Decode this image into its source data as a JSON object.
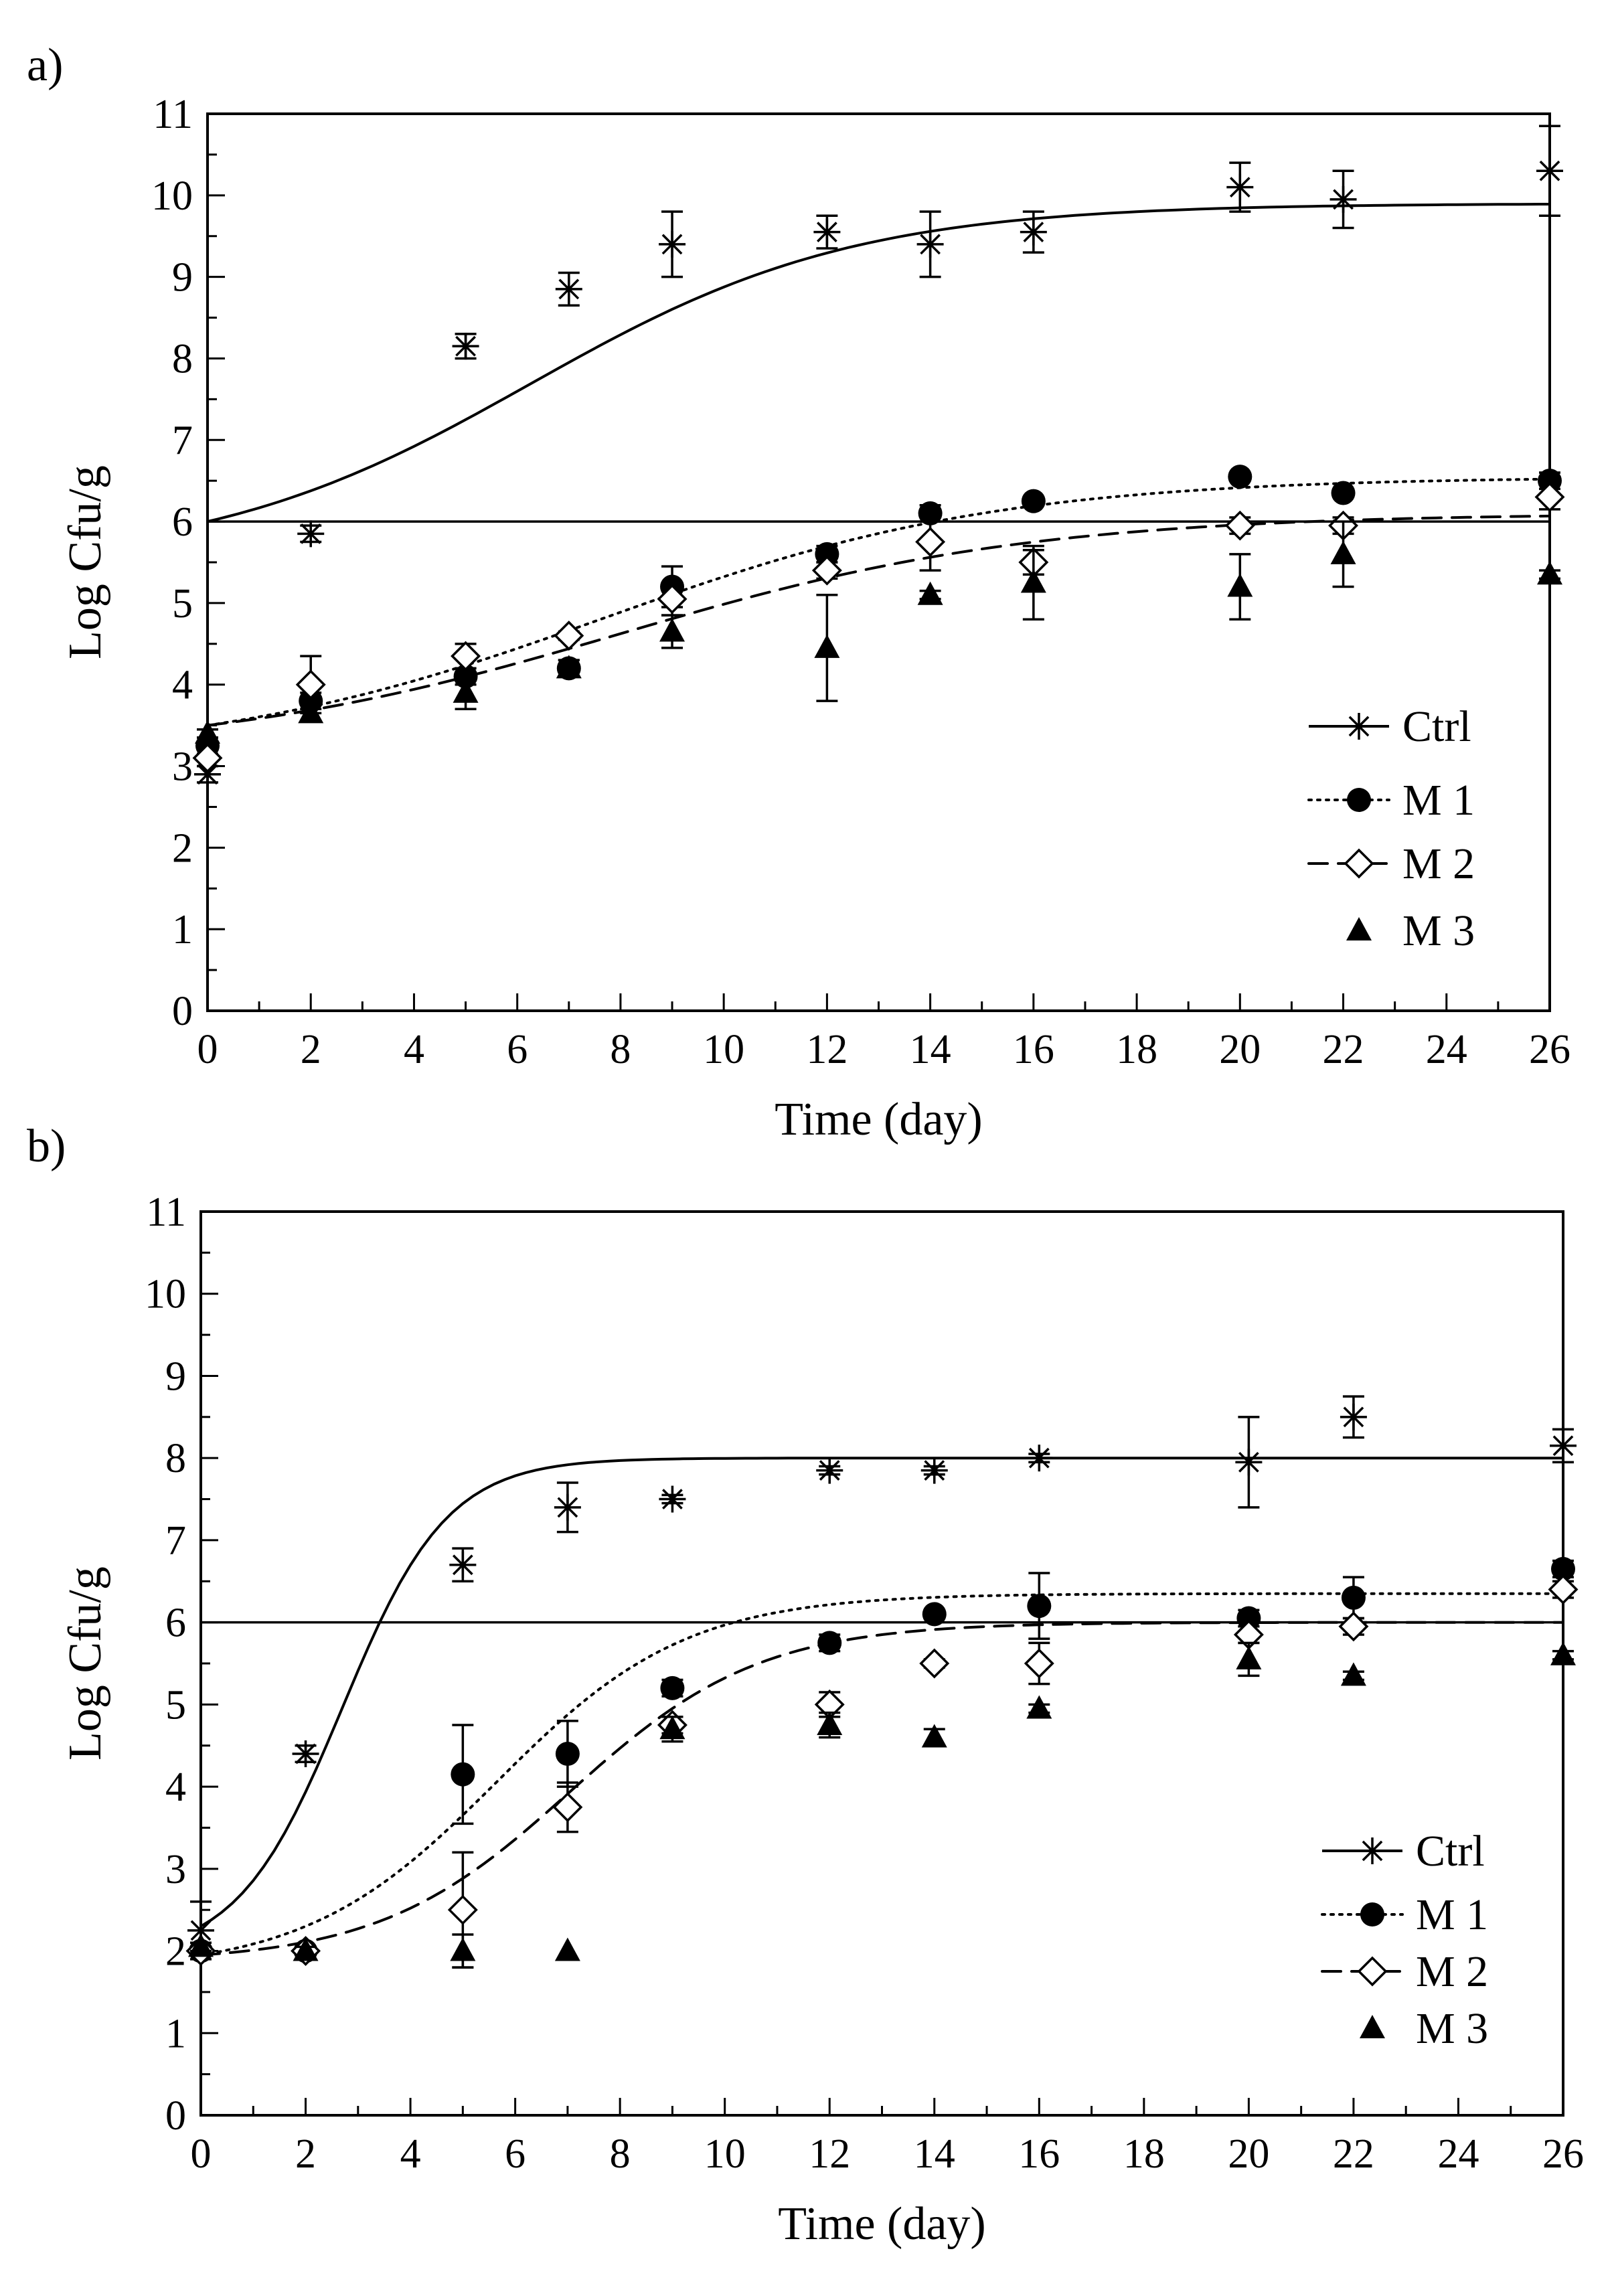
{
  "chart_data": [
    {
      "type": "scatter",
      "panel_label": "a)",
      "xlabel": "Time (day)",
      "ylabel": "Log Cfu/g",
      "xlim": [
        0,
        26
      ],
      "ylim": [
        0,
        11
      ],
      "xticks": [
        0,
        2,
        4,
        6,
        8,
        10,
        12,
        14,
        16,
        18,
        20,
        22,
        24,
        26
      ],
      "yticks": [
        0,
        1,
        2,
        3,
        4,
        5,
        6,
        7,
        8,
        9,
        10,
        11
      ],
      "reference_line_y": 6,
      "legend_position": "bottom-right",
      "series": [
        {
          "name": "Ctrl",
          "marker": "asterisk",
          "line_style": "solid",
          "color": "#000000",
          "points": [
            {
              "x": 0,
              "y": 2.9,
              "err": 0.1
            },
            {
              "x": 2,
              "y": 5.85,
              "err": 0.1
            },
            {
              "x": 5,
              "y": 8.15,
              "err": 0.15
            },
            {
              "x": 7,
              "y": 8.85,
              "err": 0.2
            },
            {
              "x": 9,
              "y": 9.4,
              "err": 0.4
            },
            {
              "x": 12,
              "y": 9.55,
              "err": 0.2
            },
            {
              "x": 14,
              "y": 9.4,
              "err": 0.4
            },
            {
              "x": 16,
              "y": 9.55,
              "err": 0.25
            },
            {
              "x": 20,
              "y": 10.1,
              "err": 0.3
            },
            {
              "x": 22,
              "y": 9.95,
              "err": 0.35
            },
            {
              "x": 26,
              "y": 10.3,
              "err": 0.55
            }
          ],
          "fit": {
            "y0": 6.0,
            "ymax": 9.9,
            "rate": 0.32,
            "lag": 0.0
          }
        },
        {
          "name": "M 1",
          "marker": "filled-circle",
          "line_style": "dotted",
          "color": "#000000",
          "points": [
            {
              "x": 0,
              "y": 3.25,
              "err": 0.1
            },
            {
              "x": 2,
              "y": 3.8,
              "err": 0.1
            },
            {
              "x": 5,
              "y": 4.1,
              "err": 0.1
            },
            {
              "x": 7,
              "y": 4.2,
              "err": 0.1
            },
            {
              "x": 9,
              "y": 5.2,
              "err": 0.25
            },
            {
              "x": 12,
              "y": 5.6,
              "err": 0.1
            },
            {
              "x": 14,
              "y": 6.1,
              "err": 0.1
            },
            {
              "x": 16,
              "y": 6.25,
              "err": 0.05
            },
            {
              "x": 20,
              "y": 6.55,
              "err": 0.05
            },
            {
              "x": 22,
              "y": 6.35,
              "err": 0.05
            },
            {
              "x": 26,
              "y": 6.5,
              "err": 0.1
            }
          ],
          "fit": {
            "y0": 3.5,
            "ymax": 6.55,
            "rate": 0.26,
            "lag": 0.0
          }
        },
        {
          "name": "M 2",
          "marker": "open-diamond",
          "line_style": "dashed",
          "color": "#000000",
          "points": [
            {
              "x": 0,
              "y": 3.1,
              "err": 0.1
            },
            {
              "x": 2,
              "y": 4.0,
              "err": 0.35
            },
            {
              "x": 5,
              "y": 4.35,
              "err": 0.15
            },
            {
              "x": 7,
              "y": 4.6,
              "err": 0.05
            },
            {
              "x": 9,
              "y": 5.05,
              "err": 0.2
            },
            {
              "x": 12,
              "y": 5.4,
              "err": 0.1
            },
            {
              "x": 14,
              "y": 5.75,
              "err": 0.35
            },
            {
              "x": 16,
              "y": 5.5,
              "err": 0.15
            },
            {
              "x": 20,
              "y": 5.95,
              "err": 0.1
            },
            {
              "x": 22,
              "y": 5.95,
              "err": 0.1
            },
            {
              "x": 26,
              "y": 6.3,
              "err": 0.15
            }
          ],
          "fit": {
            "y0": 3.5,
            "ymax": 6.1,
            "rate": 0.25,
            "lag": 0.0
          }
        },
        {
          "name": "M 3",
          "marker": "filled-triangle",
          "line_style": "none",
          "color": "#000000",
          "points": [
            {
              "x": 0,
              "y": 3.4,
              "err": 0.05
            },
            {
              "x": 2,
              "y": 3.65,
              "err": 0.1
            },
            {
              "x": 5,
              "y": 3.9,
              "err": 0.2
            },
            {
              "x": 7,
              "y": 4.2,
              "err": 0.1
            },
            {
              "x": 9,
              "y": 4.65,
              "err": 0.2
            },
            {
              "x": 12,
              "y": 4.45,
              "err": 0.65
            },
            {
              "x": 14,
              "y": 5.1,
              "err": 0.05
            },
            {
              "x": 16,
              "y": 5.25,
              "err": 0.45
            },
            {
              "x": 20,
              "y": 5.2,
              "err": 0.4
            },
            {
              "x": 22,
              "y": 5.6,
              "err": 0.4
            },
            {
              "x": 26,
              "y": 5.35,
              "err": 0.05
            }
          ]
        }
      ]
    },
    {
      "type": "scatter",
      "panel_label": "b)",
      "xlabel": "Time (day)",
      "ylabel": "Log Cfu/g",
      "xlim": [
        0,
        26
      ],
      "ylim": [
        0,
        11
      ],
      "xticks": [
        0,
        2,
        4,
        6,
        8,
        10,
        12,
        14,
        16,
        18,
        20,
        22,
        24,
        26
      ],
      "yticks": [
        0,
        1,
        2,
        3,
        4,
        5,
        6,
        7,
        8,
        9,
        10,
        11
      ],
      "reference_line_y": 6,
      "legend_position": "bottom-right",
      "series": [
        {
          "name": "Ctrl",
          "marker": "asterisk",
          "line_style": "solid",
          "color": "#000000",
          "points": [
            {
              "x": 0,
              "y": 2.25,
              "err": 0.35
            },
            {
              "x": 2,
              "y": 4.4,
              "err": 0.1
            },
            {
              "x": 5,
              "y": 6.7,
              "err": 0.2
            },
            {
              "x": 7,
              "y": 7.4,
              "err": 0.3
            },
            {
              "x": 9,
              "y": 7.5,
              "err": 0.05
            },
            {
              "x": 12,
              "y": 7.85,
              "err": 0.05
            },
            {
              "x": 14,
              "y": 7.85,
              "err": 0.05
            },
            {
              "x": 16,
              "y": 8.0,
              "err": 0.05
            },
            {
              "x": 20,
              "y": 7.95,
              "err": 0.55
            },
            {
              "x": 22,
              "y": 8.5,
              "err": 0.25
            },
            {
              "x": 26,
              "y": 8.15,
              "err": 0.2
            }
          ],
          "fit": {
            "y0": 2.3,
            "ymax": 8.0,
            "rate": 1.0,
            "lag": 0.7
          }
        },
        {
          "name": "M 1",
          "marker": "filled-circle",
          "line_style": "dotted",
          "color": "#000000",
          "points": [
            {
              "x": 0,
              "y": 2.0,
              "err": 0.05
            },
            {
              "x": 2,
              "y": 2.0,
              "err": 0.05
            },
            {
              "x": 5,
              "y": 4.15,
              "err": 0.6
            },
            {
              "x": 7,
              "y": 4.4,
              "err": 0.4
            },
            {
              "x": 9,
              "y": 5.2,
              "err": 0.1
            },
            {
              "x": 12,
              "y": 5.75,
              "err": 0.1
            },
            {
              "x": 14,
              "y": 6.1,
              "err": 0.05
            },
            {
              "x": 16,
              "y": 6.2,
              "err": 0.4
            },
            {
              "x": 20,
              "y": 6.05,
              "err": 0.1
            },
            {
              "x": 22,
              "y": 6.3,
              "err": 0.25
            },
            {
              "x": 26,
              "y": 6.65,
              "err": 0.1
            }
          ],
          "fit": {
            "y0": 1.95,
            "ymax": 6.35,
            "rate": 0.55,
            "lag": 2.0
          }
        },
        {
          "name": "M 2",
          "marker": "open-diamond",
          "line_style": "dashed",
          "color": "#000000",
          "points": [
            {
              "x": 0,
              "y": 2.0,
              "err": 0.05
            },
            {
              "x": 2,
              "y": 2.0,
              "err": 0.05
            },
            {
              "x": 5,
              "y": 2.5,
              "err": 0.7
            },
            {
              "x": 7,
              "y": 3.75,
              "err": 0.3
            },
            {
              "x": 9,
              "y": 4.75,
              "err": 0.1
            },
            {
              "x": 12,
              "y": 5.0,
              "err": 0.15
            },
            {
              "x": 14,
              "y": 5.5,
              "err": 0.05
            },
            {
              "x": 16,
              "y": 5.5,
              "err": 0.25
            },
            {
              "x": 20,
              "y": 5.85,
              "err": 0.1
            },
            {
              "x": 22,
              "y": 5.95,
              "err": 0.1
            },
            {
              "x": 26,
              "y": 6.4,
              "err": 0.1
            }
          ],
          "fit": {
            "y0": 1.95,
            "ymax": 6.0,
            "rate": 0.55,
            "lag": 3.4
          }
        },
        {
          "name": "M 3",
          "marker": "filled-triangle",
          "line_style": "none",
          "color": "#000000",
          "points": [
            {
              "x": 0,
              "y": 2.05,
              "err": 0.05
            },
            {
              "x": 2,
              "y": 2.0,
              "err": 0.05
            },
            {
              "x": 5,
              "y": 2.0,
              "err": 0.2
            },
            {
              "x": 7,
              "y": 2.0,
              "err": 0.0
            },
            {
              "x": 9,
              "y": 4.7,
              "err": 0.15
            },
            {
              "x": 12,
              "y": 4.75,
              "err": 0.15
            },
            {
              "x": 14,
              "y": 4.6,
              "err": 0.1
            },
            {
              "x": 16,
              "y": 4.95,
              "err": 0.05
            },
            {
              "x": 20,
              "y": 5.55,
              "err": 0.2
            },
            {
              "x": 22,
              "y": 5.35,
              "err": 0.05
            },
            {
              "x": 26,
              "y": 5.6,
              "err": 0.05
            }
          ]
        }
      ]
    }
  ]
}
